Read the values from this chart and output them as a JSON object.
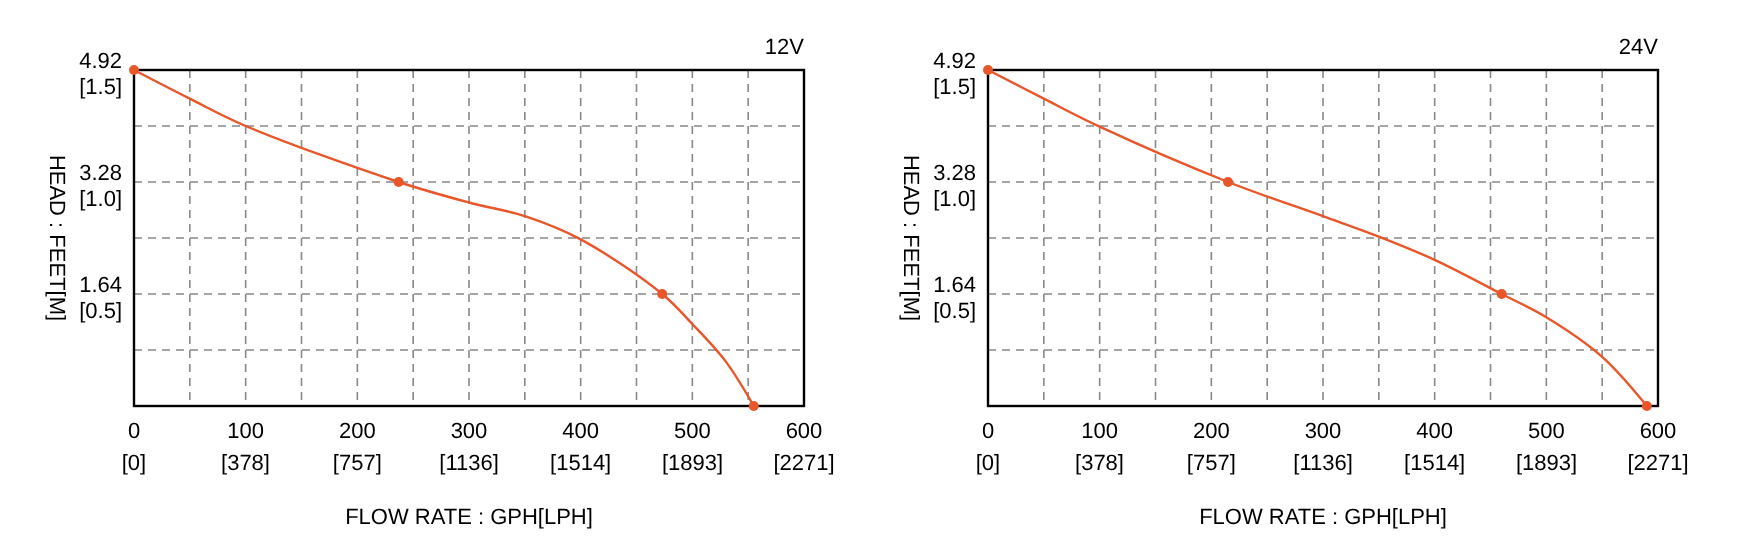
{
  "chart_data": [
    {
      "type": "line",
      "title": "12V",
      "xlabel": "FLOW RATE : GPH[LPH]",
      "ylabel": "HEAD : FEET[M]",
      "xlim": [
        0,
        600
      ],
      "ylim": [
        0,
        4.92
      ],
      "xticks": [
        0,
        {
          "value": 50,
          "label": null
        },
        100,
        {
          "value": 150,
          "label": null
        },
        200,
        {
          "value": 250,
          "label": null
        },
        300,
        {
          "value": 350,
          "label": null
        },
        400,
        {
          "value": 450,
          "label": null
        },
        500,
        {
          "value": 550,
          "label": null
        },
        600
      ],
      "x2lim": [
        0,
        2271
      ],
      "x2ticks": [
        {
          "value": 0,
          "label": "[0]"
        },
        {
          "value": 378,
          "label": "[378]"
        },
        {
          "value": 757,
          "label": "[757]"
        },
        {
          "value": 1136,
          "label": "[1136]"
        },
        {
          "value": 1514,
          "label": "[1514]"
        },
        {
          "value": 1893,
          "label": "[1893]"
        },
        {
          "value": 2271,
          "label": "[2271]"
        }
      ],
      "yticks": [
        {
          "value": 0,
          "label": null
        },
        {
          "value": 0.82,
          "label": null
        },
        1.64,
        {
          "value": 2.46,
          "label": null
        },
        3.28,
        {
          "value": 4.1,
          "label": null
        },
        4.92
      ],
      "y2lim": [
        0,
        1.5
      ],
      "y2ticks": [
        {
          "value": 0.5,
          "label": "[0.5]"
        },
        {
          "value": 1.0,
          "label": "[1.0]"
        },
        {
          "value": 1.5,
          "label": "[1.5]"
        }
      ],
      "grid": true,
      "series": [
        {
          "color": "#e8562a",
          "marker": "none",
          "x": [
            0,
            50,
            100,
            237,
            300,
            350,
            400,
            473,
            500,
            530,
            555
          ],
          "values": [
            4.92,
            4.5,
            4.1,
            3.28,
            2.98,
            2.78,
            2.44,
            1.64,
            1.2,
            0.65,
            0
          ]
        },
        {
          "type": "scatter",
          "color": "#e8562a",
          "marker": "circle",
          "x": [
            0,
            237,
            473,
            555
          ],
          "values": [
            4.92,
            3.28,
            1.64,
            0
          ]
        }
      ]
    },
    {
      "type": "line",
      "title": "24V",
      "xlabel": "FLOW RATE : GPH[LPH]",
      "ylabel": "HEAD : FEET[M]",
      "xlim": [
        0,
        600
      ],
      "ylim": [
        0,
        4.92
      ],
      "xticks": [
        0,
        {
          "value": 50,
          "label": null
        },
        100,
        {
          "value": 150,
          "label": null
        },
        200,
        {
          "value": 250,
          "label": null
        },
        300,
        {
          "value": 350,
          "label": null
        },
        400,
        {
          "value": 450,
          "label": null
        },
        500,
        {
          "value": 550,
          "label": null
        },
        600
      ],
      "x2lim": [
        0,
        2271
      ],
      "x2ticks": [
        {
          "value": 0,
          "label": "[0]"
        },
        {
          "value": 378,
          "label": "[378]"
        },
        {
          "value": 757,
          "label": "[757]"
        },
        {
          "value": 1136,
          "label": "[1136]"
        },
        {
          "value": 1514,
          "label": "[1514]"
        },
        {
          "value": 1893,
          "label": "[1893]"
        },
        {
          "value": 2271,
          "label": "[2271]"
        }
      ],
      "yticks": [
        {
          "value": 0,
          "label": null
        },
        {
          "value": 0.82,
          "label": null
        },
        1.64,
        {
          "value": 2.46,
          "label": null
        },
        3.28,
        {
          "value": 4.1,
          "label": null
        },
        4.92
      ],
      "y2lim": [
        0,
        1.5
      ],
      "y2ticks": [
        {
          "value": 0.5,
          "label": "[0.5]"
        },
        {
          "value": 1.0,
          "label": "[1.0]"
        },
        {
          "value": 1.5,
          "label": "[1.5]"
        }
      ],
      "grid": true,
      "series": [
        {
          "color": "#e8562a",
          "marker": "none",
          "x": [
            0,
            50,
            100,
            215,
            300,
            350,
            400,
            460,
            500,
            550,
            590
          ],
          "values": [
            4.92,
            4.5,
            4.09,
            3.28,
            2.78,
            2.48,
            2.14,
            1.64,
            1.3,
            0.72,
            0
          ]
        },
        {
          "type": "scatter",
          "color": "#e8562a",
          "marker": "circle",
          "x": [
            0,
            215,
            460,
            590
          ],
          "values": [
            4.92,
            3.28,
            1.64,
            0
          ]
        }
      ]
    }
  ]
}
